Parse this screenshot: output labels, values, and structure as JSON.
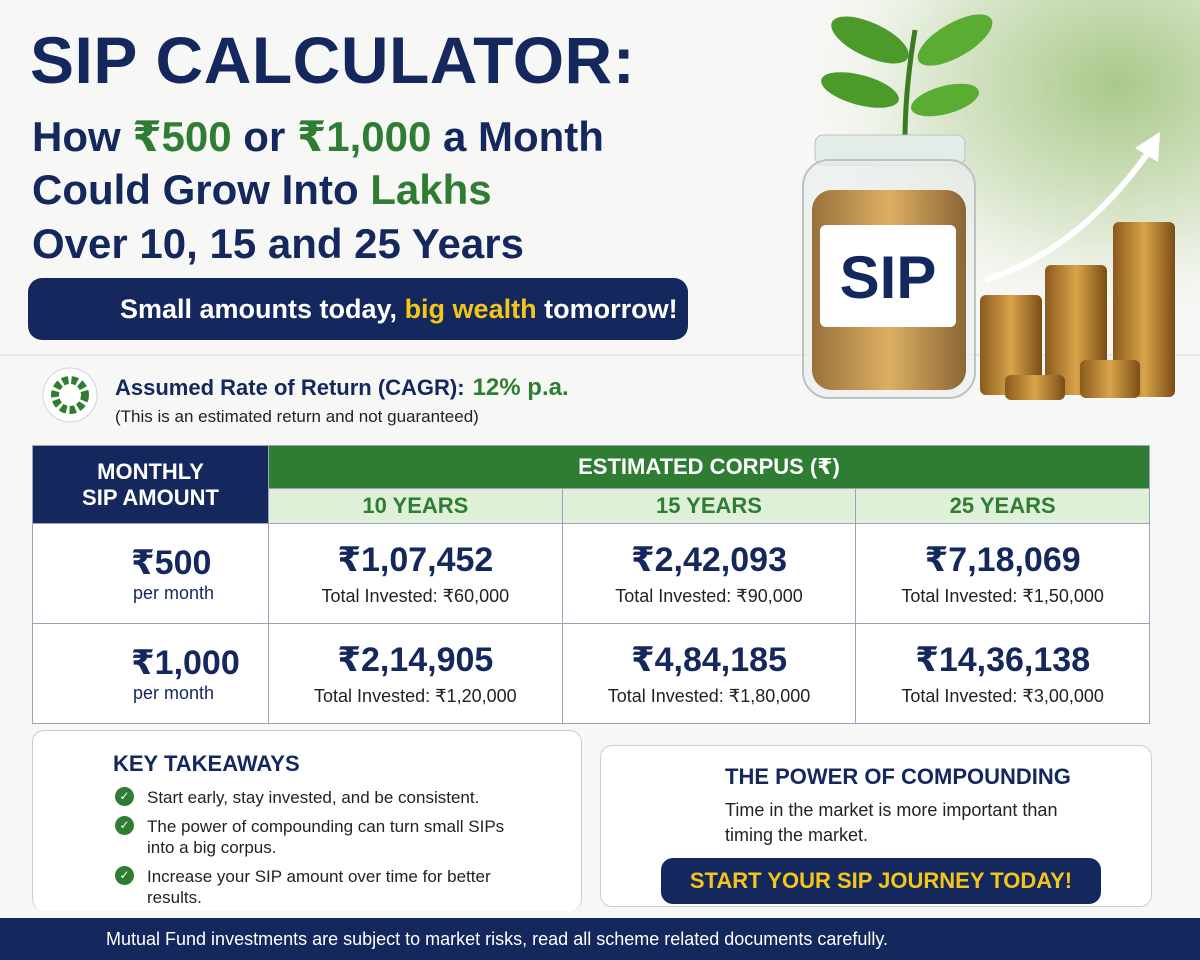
{
  "header": {
    "title": "SIP CALCULATOR:",
    "subtitle_lines": [
      [
        "How ",
        "₹500",
        " or ",
        "₹1,000",
        " a Month"
      ],
      [
        "Could Grow Into ",
        "Lakhs"
      ],
      [
        "Over 10, 15 and 25 Years"
      ]
    ],
    "tagline": [
      "Small amounts today, ",
      "big wealth",
      " tomorrow!"
    ],
    "jar_label": "SIP"
  },
  "rate": {
    "label": "Assumed Rate of Return (CAGR):",
    "value": "12% p.a.",
    "note": "(This is an estimated return and not guaranteed)"
  },
  "table": {
    "amount_header": [
      "MONTHLY",
      "SIP AMOUNT"
    ],
    "corpus_header": "ESTIMATED CORPUS (₹)",
    "columns": [
      "10 YEARS",
      "15 YEARS",
      "25 YEARS"
    ],
    "rows": [
      {
        "amount": "₹500",
        "unit": "per month",
        "cells": [
          {
            "corpus": "₹1,07,452",
            "invested": "Total Invested: ₹60,000"
          },
          {
            "corpus": "₹2,42,093",
            "invested": "Total Invested: ₹90,000"
          },
          {
            "corpus": "₹7,18,069",
            "invested": "Total Invested: ₹1,50,000"
          }
        ]
      },
      {
        "amount": "₹1,000",
        "unit": "per month",
        "cells": [
          {
            "corpus": "₹2,14,905",
            "invested": "Total Invested: ₹1,20,000"
          },
          {
            "corpus": "₹4,84,185",
            "invested": "Total Invested: ₹1,80,000"
          },
          {
            "corpus": "₹14,36,138",
            "invested": "Total Invested: ₹3,00,000"
          }
        ]
      }
    ]
  },
  "takeaways": {
    "title": "KEY TAKEAWAYS",
    "items": [
      "Start early, stay invested, and be consistent.",
      "The power of compounding can turn small SIPs into a big corpus.",
      "Increase your SIP amount over time for better results."
    ]
  },
  "compounding": {
    "title": "THE POWER OF COMPOUNDING",
    "text": "Time in the market is more important than timing the market.",
    "cta": "START YOUR SIP JOURNEY TODAY!"
  },
  "footer": {
    "disclaimer": "Mutual Fund investments are subject to market risks, read all scheme related documents carefully."
  }
}
